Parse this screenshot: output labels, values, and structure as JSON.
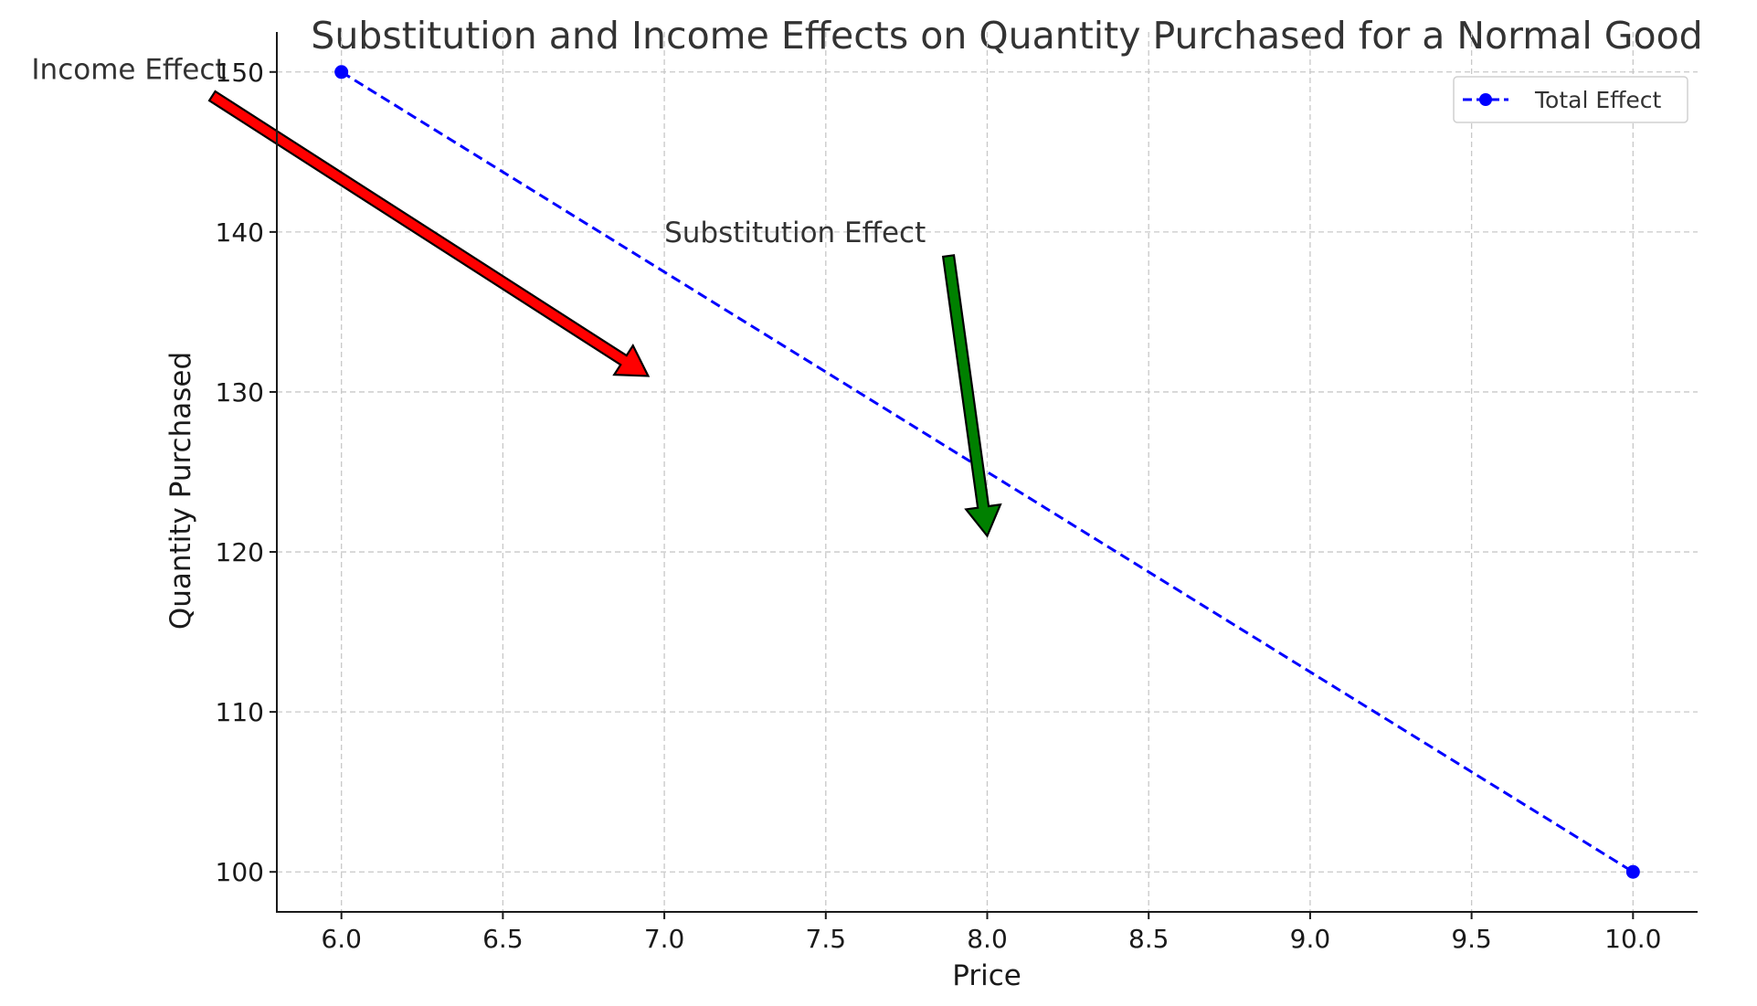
{
  "chart_data": {
    "type": "line",
    "title": "Substitution and Income Effects on Quantity Purchased for a Normal Good",
    "xlabel": "Price",
    "ylabel": "Quantity Purchased",
    "xlim": [
      5.8,
      10.2
    ],
    "ylim": [
      97.5,
      152.5
    ],
    "grid": true,
    "legend_position": "top-right",
    "x_ticks": [
      6.0,
      6.5,
      7.0,
      7.5,
      8.0,
      8.5,
      9.0,
      9.5,
      10.0
    ],
    "x_tick_labels": [
      "6.0",
      "6.5",
      "7.0",
      "7.5",
      "8.0",
      "8.5",
      "9.0",
      "9.5",
      "10.0"
    ],
    "y_ticks": [
      100,
      110,
      120,
      130,
      140,
      150
    ],
    "y_tick_labels": [
      "100",
      "110",
      "120",
      "130",
      "140",
      "150"
    ],
    "series": [
      {
        "name": "Total Effect",
        "x": [
          6,
          10
        ],
        "y": [
          150,
          100
        ],
        "color": "#0000ff",
        "line_style": "dashed",
        "marker": "circle"
      }
    ],
    "annotations": [
      {
        "text": "Income Effect",
        "text_at": [
          5.04,
          150.2
        ],
        "from": [
          5.6,
          148.5
        ],
        "to": [
          6.95,
          131
        ],
        "color": "#ff0000"
      },
      {
        "text": "Substitution Effect",
        "text_at": [
          7.0,
          140.0
        ],
        "from": [
          7.88,
          138.5
        ],
        "to": [
          8.0,
          121
        ],
        "color": "#008000"
      }
    ]
  }
}
